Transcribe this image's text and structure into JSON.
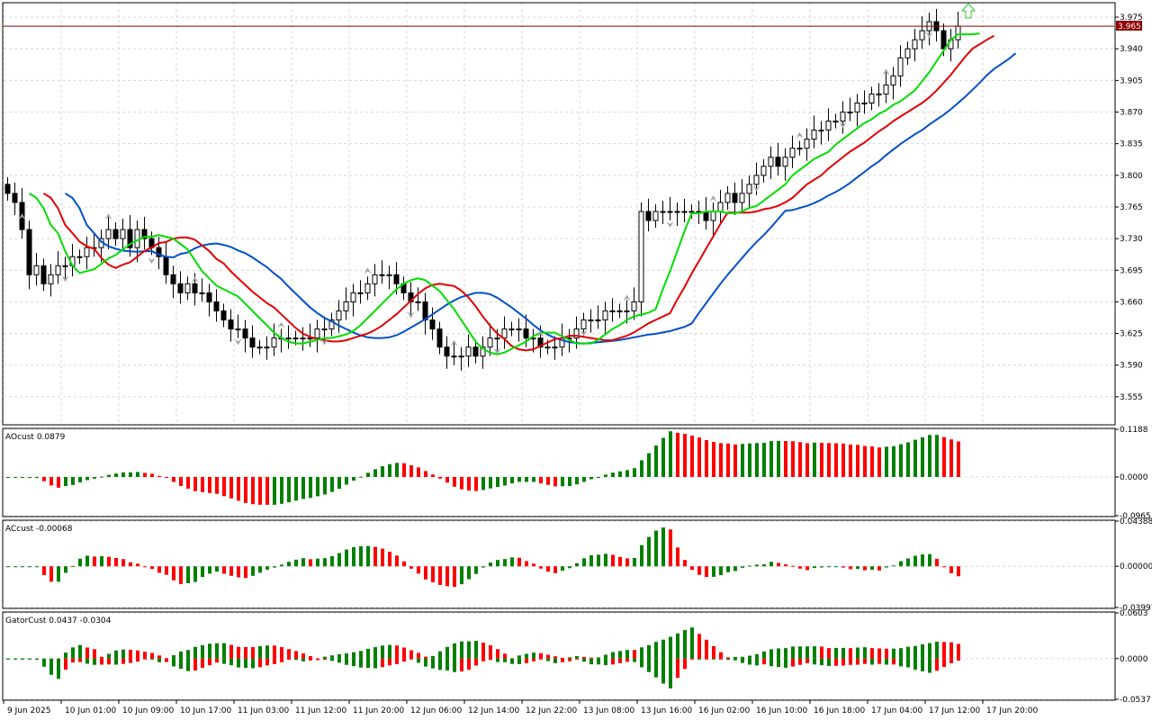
{
  "current_price": "3.965",
  "x_labels": [
    "9 Jun 2025",
    "10 Jun 01:00",
    "10 Jun 09:00",
    "10 Jun 17:00",
    "11 Jun 03:00",
    "11 Jun 12:00",
    "11 Jun 20:00",
    "12 Jun 06:00",
    "12 Jun 14:00",
    "12 Jun 22:00",
    "13 Jun 08:00",
    "13 Jun 16:00",
    "16 Jun 02:00",
    "16 Jun 10:00",
    "16 Jun 18:00",
    "17 Jun 04:00",
    "17 Jun 12:00",
    "17 Jun 20:00"
  ],
  "colors": {
    "bull": "#008000",
    "bear": "#ff0000",
    "jaw": "#0050c8",
    "teeth": "#e00000",
    "lips": "#00dd00",
    "price_line": "#8b0000",
    "fractal": "#a0a0a0",
    "arrow": "#32c832"
  },
  "chart_data": [
    {
      "type": "candlestick",
      "title": "",
      "ylim": [
        3.525,
        3.99
      ],
      "yticks": [
        "3.975",
        "3.940",
        "3.905",
        "3.870",
        "3.835",
        "3.800",
        "3.765",
        "3.730",
        "3.695",
        "3.660",
        "3.625",
        "3.590",
        "3.555"
      ],
      "series_names": [
        "Jaw",
        "Teeth",
        "Lips"
      ],
      "close": [
        3.78,
        3.77,
        3.74,
        3.69,
        3.7,
        3.68,
        3.69,
        3.7,
        3.7,
        3.71,
        3.71,
        3.72,
        3.72,
        3.73,
        3.74,
        3.73,
        3.74,
        3.72,
        3.74,
        3.73,
        3.72,
        3.71,
        3.69,
        3.68,
        3.67,
        3.68,
        3.67,
        3.67,
        3.66,
        3.65,
        3.64,
        3.63,
        3.63,
        3.62,
        3.61,
        3.61,
        3.61,
        3.62,
        3.62,
        3.62,
        3.62,
        3.62,
        3.62,
        3.63,
        3.63,
        3.64,
        3.65,
        3.66,
        3.67,
        3.67,
        3.68,
        3.69,
        3.69,
        3.69,
        3.68,
        3.67,
        3.66,
        3.66,
        3.64,
        3.63,
        3.61,
        3.6,
        3.6,
        3.6,
        3.61,
        3.6,
        3.61,
        3.62,
        3.62,
        3.63,
        3.63,
        3.63,
        3.62,
        3.62,
        3.61,
        3.61,
        3.61,
        3.62,
        3.62,
        3.63,
        3.64,
        3.64,
        3.64,
        3.65,
        3.65,
        3.65,
        3.65,
        3.66,
        3.76,
        3.75,
        3.76,
        3.76,
        3.76,
        3.76,
        3.76,
        3.76,
        3.76,
        3.75,
        3.76,
        3.77,
        3.78,
        3.77,
        3.78,
        3.79,
        3.8,
        3.81,
        3.82,
        3.81,
        3.82,
        3.83,
        3.83,
        3.84,
        3.85,
        3.85,
        3.86,
        3.86,
        3.87,
        3.87,
        3.88,
        3.88,
        3.89,
        3.89,
        3.9,
        3.91,
        3.93,
        3.94,
        3.95,
        3.96,
        3.97,
        3.96,
        3.94,
        3.95,
        3.965
      ]
    },
    {
      "type": "bar",
      "title": "AOcust 0.0879",
      "ylim": [
        -0.0965,
        0.1188
      ],
      "yticks": [
        "0.1188",
        "0.0000",
        "-0.0965"
      ]
    },
    {
      "type": "bar",
      "title": "ACcust -0.00068",
      "ylim": [
        -0.03997,
        0.04388
      ],
      "yticks": [
        "0.04388",
        "0.00000",
        "-0.03997"
      ]
    },
    {
      "type": "bar",
      "title": "GatorCust 0.0437 -0.0304",
      "ylim": [
        -0.0537,
        0.0603
      ],
      "yticks": [
        "0.0603",
        "0.0000",
        "-0.0537"
      ]
    }
  ]
}
